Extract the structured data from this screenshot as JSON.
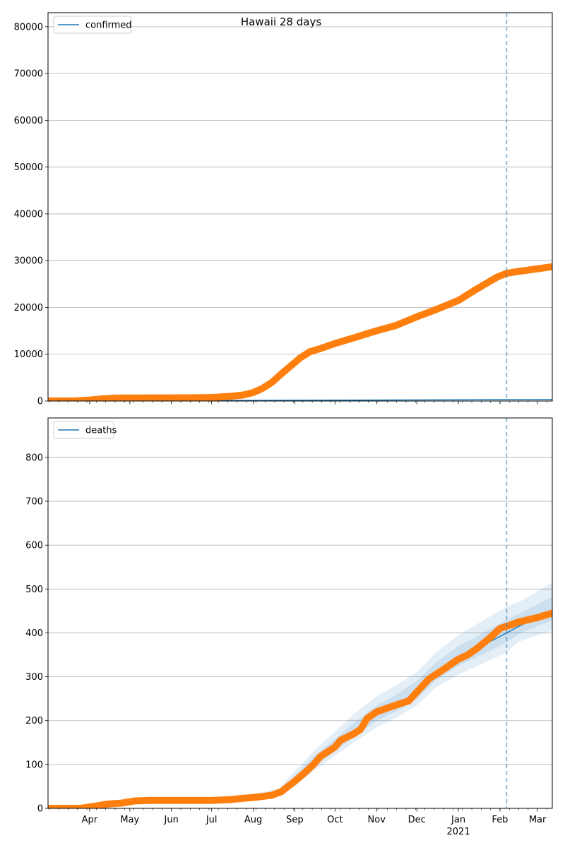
{
  "figure": {
    "title": "Hawaii 28 days"
  },
  "chart_data": [
    {
      "type": "line",
      "legend": {
        "entries": [
          "confirmed"
        ],
        "placement": "top-left"
      },
      "ylim": [
        0,
        83000
      ],
      "yticks": [
        0,
        10000,
        20000,
        30000,
        40000,
        50000,
        60000,
        70000,
        80000
      ],
      "grid": "y",
      "xlim": [
        "2020-03-01",
        "2021-03-12"
      ],
      "xticks": [
        {
          "date": "2020-04-01",
          "label": "Apr"
        },
        {
          "date": "2020-05-01",
          "label": "May"
        },
        {
          "date": "2020-06-01",
          "label": "Jun"
        },
        {
          "date": "2020-07-01",
          "label": "Jul"
        },
        {
          "date": "2020-08-01",
          "label": "Aug"
        },
        {
          "date": "2020-09-01",
          "label": "Sep"
        },
        {
          "date": "2020-10-01",
          "label": "Oct"
        },
        {
          "date": "2020-11-01",
          "label": "Nov"
        },
        {
          "date": "2020-12-01",
          "label": "Dec"
        },
        {
          "date": "2021-01-01",
          "label": "Jan"
        },
        {
          "date": "2021-02-01",
          "label": "Feb"
        },
        {
          "date": "2021-03-01",
          "label": "Mar"
        }
      ],
      "vline": "2021-02-06",
      "model": {
        "name": "confirmed",
        "color": "#1f77b4",
        "x": [
          "2020-03-01",
          "2020-06-01",
          "2020-09-01",
          "2020-12-01",
          "2021-02-06",
          "2021-03-12"
        ],
        "y": [
          0,
          60,
          150,
          230,
          280,
          320
        ]
      },
      "observed": {
        "color": "#ff7f0e",
        "x": [
          "2020-03-01",
          "2020-03-20",
          "2020-04-01",
          "2020-04-10",
          "2020-04-20",
          "2020-05-15",
          "2020-06-15",
          "2020-07-01",
          "2020-07-15",
          "2020-07-25",
          "2020-08-01",
          "2020-08-08",
          "2020-08-15",
          "2020-08-22",
          "2020-08-29",
          "2020-09-05",
          "2020-09-12",
          "2020-09-20",
          "2020-10-01",
          "2020-10-15",
          "2020-11-01",
          "2020-11-15",
          "2020-12-01",
          "2020-12-15",
          "2021-01-01",
          "2021-01-15",
          "2021-01-30",
          "2021-02-06",
          "2021-02-15",
          "2021-03-12"
        ],
        "y": [
          0,
          10,
          200,
          450,
          620,
          660,
          680,
          760,
          1000,
          1300,
          1800,
          2700,
          4000,
          5800,
          7500,
          9200,
          10500,
          11200,
          12300,
          13500,
          15000,
          16100,
          18000,
          19500,
          21500,
          24000,
          26500,
          27300,
          27700,
          28700
        ]
      }
    },
    {
      "type": "line",
      "legend": {
        "entries": [
          "deaths"
        ],
        "placement": "top-left"
      },
      "ylim": [
        0,
        890
      ],
      "yticks": [
        0,
        100,
        200,
        300,
        400,
        500,
        600,
        700,
        800
      ],
      "grid": "y",
      "xlim": [
        "2020-03-01",
        "2021-03-12"
      ],
      "xticks": [
        {
          "date": "2020-04-01",
          "label": "Apr"
        },
        {
          "date": "2020-05-01",
          "label": "May"
        },
        {
          "date": "2020-06-01",
          "label": "Jun"
        },
        {
          "date": "2020-07-01",
          "label": "Jul"
        },
        {
          "date": "2020-08-01",
          "label": "Aug"
        },
        {
          "date": "2020-09-01",
          "label": "Sep"
        },
        {
          "date": "2020-10-01",
          "label": "Oct"
        },
        {
          "date": "2020-11-01",
          "label": "Nov"
        },
        {
          "date": "2020-12-01",
          "label": "Dec"
        },
        {
          "date": "2021-01-01",
          "label": "Jan",
          "sublabel": "2021"
        },
        {
          "date": "2021-02-01",
          "label": "Feb"
        },
        {
          "date": "2021-03-01",
          "label": "Mar"
        }
      ],
      "vline": "2021-02-06",
      "band_color": "#1f77b4",
      "model": {
        "name": "deaths",
        "x": [
          "2020-03-01",
          "2020-04-10",
          "2020-05-01",
          "2020-07-01",
          "2020-08-01",
          "2020-08-20",
          "2020-09-01",
          "2020-09-15",
          "2020-10-01",
          "2020-10-15",
          "2020-11-01",
          "2020-11-15",
          "2020-12-01",
          "2020-12-15",
          "2021-01-01",
          "2021-01-15",
          "2021-02-06",
          "2021-02-15",
          "2021-03-01",
          "2021-03-12"
        ],
        "y": [
          0,
          8,
          17,
          18,
          25,
          35,
          65,
          105,
          140,
          175,
          215,
          235,
          265,
          310,
          345,
          365,
          400,
          415,
          435,
          450
        ],
        "bands": [
          {
            "lower": [
              0,
              6,
              14,
              15,
              20,
              28,
              50,
              85,
              120,
              150,
              185,
              205,
              235,
              275,
              305,
              325,
              355,
              380,
              395,
              405
            ],
            "upper": [
              2,
              12,
              22,
              24,
              33,
              45,
              85,
              130,
              175,
              215,
              255,
              280,
              310,
              355,
              395,
              420,
              460,
              470,
              495,
              515
            ]
          },
          {
            "lower": [
              0,
              7,
              15,
              16,
              22,
              31,
              57,
              95,
              130,
              162,
              200,
              220,
              250,
              292,
              325,
              345,
              378,
              398,
              415,
              428
            ],
            "upper": [
              1,
              10,
              19,
              21,
              29,
              40,
              75,
              118,
              158,
              195,
              235,
              258,
              290,
              332,
              370,
              392,
              430,
              443,
              465,
              482
            ]
          }
        ]
      },
      "observed": {
        "color": "#ff7f0e",
        "x": [
          "2020-03-01",
          "2020-03-25",
          "2020-04-05",
          "2020-04-15",
          "2020-04-25",
          "2020-05-05",
          "2020-05-15",
          "2020-06-15",
          "2020-07-01",
          "2020-07-15",
          "2020-07-25",
          "2020-08-05",
          "2020-08-15",
          "2020-08-22",
          "2020-09-01",
          "2020-09-08",
          "2020-09-15",
          "2020-09-20",
          "2020-10-01",
          "2020-10-05",
          "2020-10-15",
          "2020-10-20",
          "2020-10-25",
          "2020-11-01",
          "2020-11-15",
          "2020-11-25",
          "2020-12-01",
          "2020-12-10",
          "2020-12-20",
          "2021-01-01",
          "2021-01-08",
          "2021-01-15",
          "2021-01-25",
          "2021-02-01",
          "2021-02-06",
          "2021-02-15",
          "2021-03-01",
          "2021-03-12"
        ],
        "y": [
          0,
          0,
          5,
          10,
          12,
          17,
          18,
          18,
          18,
          20,
          23,
          26,
          30,
          38,
          62,
          80,
          100,
          118,
          140,
          155,
          170,
          180,
          205,
          220,
          235,
          245,
          265,
          295,
          315,
          340,
          350,
          365,
          390,
          410,
          415,
          425,
          435,
          445
        ]
      }
    }
  ]
}
